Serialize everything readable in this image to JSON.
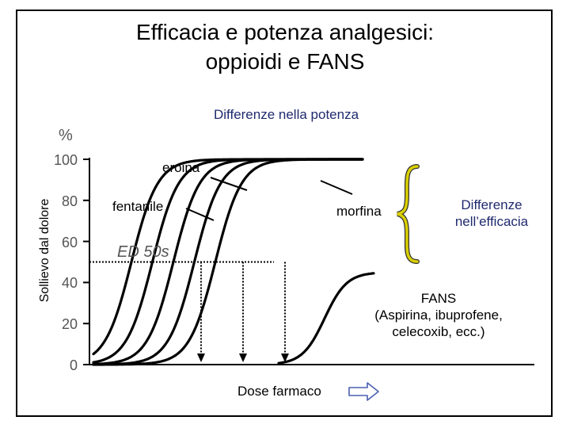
{
  "slide": {
    "title_line1": "Efficacia e potenza analgesici:",
    "title_line2": "oppioidi e FANS"
  },
  "chart_data": {
    "type": "line",
    "title": "Differenze nella potenza",
    "ylabel": "Sollievo dal dolore",
    "yunit": "%",
    "xlabel": "Dose farmaco",
    "ylim": [
      0,
      100
    ],
    "yticks": [
      0,
      20,
      40,
      60,
      80,
      100
    ],
    "grid": false,
    "series": [
      {
        "name": "eroina",
        "ed50_position": 1.0,
        "max_relief": 100
      },
      {
        "name": "",
        "ed50_position": 2.0,
        "max_relief": 100
      },
      {
        "name": "fentanile",
        "ed50_position": 3.0,
        "max_relief": 100
      },
      {
        "name": "",
        "ed50_position": 4.0,
        "max_relief": 100
      },
      {
        "name": "morfina",
        "ed50_position": 5.0,
        "max_relief": 100
      },
      {
        "name": "FANS",
        "ed50_position": 10.5,
        "max_relief": 45
      }
    ],
    "annotations": {
      "eroina": "eroina",
      "fentanile": "fentanile",
      "morfina": "morfina",
      "ed50": "ED 50s",
      "efficacy_line1": "Differenze",
      "efficacy_line2": "nell’efficacia",
      "fans_line1": "FANS",
      "fans_line2": "(Aspirina, ibuprofene,",
      "fans_line3": "celecoxib, ecc.)"
    },
    "ed50_level": 50
  },
  "colors": {
    "axis": "#000000",
    "curve": "#000000",
    "tick_text": "#555555",
    "accent_text": "#1f2a6e",
    "brace": "#d9cf00"
  },
  "icons": [
    "right-arrow-icon",
    "brace-icon"
  ]
}
